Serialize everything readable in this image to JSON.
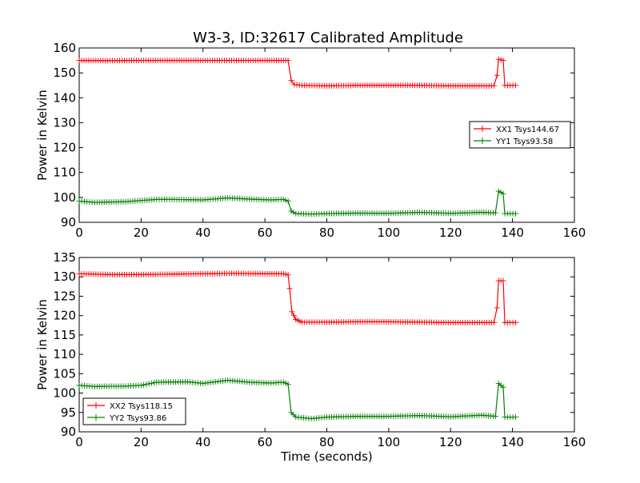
{
  "figure_title": "W3-3, ID:32617 Calibrated Amplitude",
  "colors": {
    "xx": "#ff0000",
    "yy": "#008000",
    "axis": "#000000"
  },
  "chart_data": [
    {
      "type": "line",
      "ylabel": "Power in Kelvin",
      "xlabel": "",
      "xlim": [
        0,
        160
      ],
      "ylim": [
        90,
        160
      ],
      "xticks": [
        0,
        20,
        40,
        60,
        80,
        100,
        120,
        140,
        160
      ],
      "yticks": [
        90,
        100,
        110,
        120,
        130,
        140,
        150,
        160
      ],
      "legend_position": "right",
      "series": [
        {
          "name": "XX1 Tsys144.67",
          "color": "#ff0000",
          "points": [
            [
              0,
              155
            ],
            [
              10,
              154.9
            ],
            [
              20,
              155
            ],
            [
              30,
              155
            ],
            [
              40,
              155
            ],
            [
              50,
              155
            ],
            [
              60,
              155
            ],
            [
              66,
              155
            ],
            [
              67.5,
              155
            ],
            [
              68.5,
              147
            ],
            [
              69.5,
              145.3
            ],
            [
              72,
              145
            ],
            [
              80,
              144.8
            ],
            [
              90,
              145
            ],
            [
              100,
              145
            ],
            [
              110,
              145
            ],
            [
              120,
              144.8
            ],
            [
              130,
              144.8
            ],
            [
              134,
              144.8
            ],
            [
              135,
              149
            ],
            [
              135.5,
              155.5
            ],
            [
              137,
              155
            ],
            [
              137.5,
              145
            ],
            [
              141,
              145
            ]
          ]
        },
        {
          "name": "YY1 Tsys93.58",
          "color": "#008000",
          "points": [
            [
              0,
              98.5
            ],
            [
              5,
              98
            ],
            [
              15,
              98.3
            ],
            [
              25,
              99.2
            ],
            [
              30,
              99.2
            ],
            [
              40,
              99
            ],
            [
              48,
              99.8
            ],
            [
              55,
              99.3
            ],
            [
              62,
              99
            ],
            [
              66,
              99.2
            ],
            [
              67.5,
              98.5
            ],
            [
              68.5,
              94.5
            ],
            [
              70,
              93.5
            ],
            [
              75,
              93.3
            ],
            [
              80,
              93.5
            ],
            [
              90,
              93.7
            ],
            [
              100,
              93.6
            ],
            [
              110,
              94
            ],
            [
              120,
              93.6
            ],
            [
              130,
              94
            ],
            [
              134.5,
              93.8
            ],
            [
              135.5,
              102.5
            ],
            [
              137,
              101.5
            ],
            [
              137.5,
              93.5
            ],
            [
              141,
              93.5
            ]
          ]
        }
      ]
    },
    {
      "type": "line",
      "ylabel": "Power in Kelvin",
      "xlabel": "Time (seconds)",
      "xlim": [
        0,
        160
      ],
      "ylim": [
        90,
        135
      ],
      "xticks": [
        0,
        20,
        40,
        60,
        80,
        100,
        120,
        140,
        160
      ],
      "yticks": [
        90,
        95,
        100,
        105,
        110,
        115,
        120,
        125,
        130,
        135
      ],
      "legend_position": "lower left",
      "series": [
        {
          "name": "XX2 Tsys118.15",
          "color": "#ff0000",
          "points": [
            [
              0,
              130.8
            ],
            [
              10,
              130.6
            ],
            [
              20,
              130.6
            ],
            [
              30,
              130.7
            ],
            [
              40,
              130.8
            ],
            [
              50,
              130.9
            ],
            [
              60,
              130.8
            ],
            [
              66,
              130.8
            ],
            [
              67.5,
              130.5
            ],
            [
              68,
              127
            ],
            [
              68.7,
              121
            ],
            [
              70,
              119
            ],
            [
              72,
              118.3
            ],
            [
              80,
              118.3
            ],
            [
              90,
              118.4
            ],
            [
              100,
              118.4
            ],
            [
              110,
              118.3
            ],
            [
              120,
              118.2
            ],
            [
              134,
              118.2
            ],
            [
              135,
              122
            ],
            [
              135.5,
              129
            ],
            [
              137,
              129
            ],
            [
              137.5,
              118.2
            ],
            [
              141,
              118.2
            ]
          ]
        },
        {
          "name": "YY2 Tsys93.86",
          "color": "#008000",
          "points": [
            [
              0,
              102
            ],
            [
              5,
              101.7
            ],
            [
              15,
              101.8
            ],
            [
              20,
              102
            ],
            [
              25,
              102.8
            ],
            [
              35,
              102.9
            ],
            [
              40,
              102.5
            ],
            [
              48,
              103.3
            ],
            [
              55,
              102.8
            ],
            [
              62,
              102.6
            ],
            [
              66,
              102.8
            ],
            [
              67.5,
              102.3
            ],
            [
              68.5,
              95
            ],
            [
              70,
              93.8
            ],
            [
              75,
              93.4
            ],
            [
              80,
              93.8
            ],
            [
              90,
              94
            ],
            [
              100,
              94
            ],
            [
              110,
              94.2
            ],
            [
              120,
              93.9
            ],
            [
              130,
              94.3
            ],
            [
              134.5,
              94
            ],
            [
              135.5,
              102.5
            ],
            [
              137,
              101.5
            ],
            [
              137.5,
              93.8
            ],
            [
              141,
              93.8
            ]
          ]
        }
      ]
    }
  ]
}
